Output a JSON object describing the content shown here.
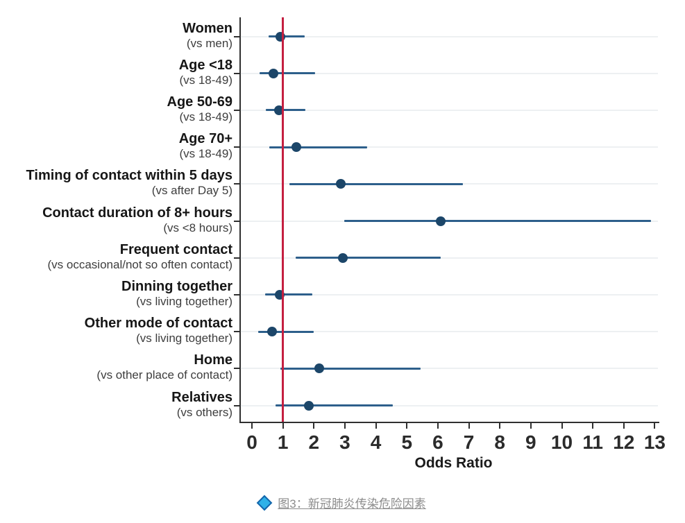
{
  "chart_data": {
    "type": "scatter",
    "subtype": "forest-plot",
    "title": "",
    "xlabel": "Odds Ratio",
    "ylabel": "",
    "xlim": [
      0,
      13.2
    ],
    "x_ticks": [
      0,
      1,
      2,
      3,
      4,
      5,
      6,
      7,
      8,
      9,
      10,
      11,
      12,
      13
    ],
    "refline_x": 1,
    "grid": "horizontal-light",
    "legend": "none",
    "rows": [
      {
        "label": "Women",
        "sublabel": "(vs men)",
        "or": 0.92,
        "ci_low": 0.53,
        "ci_high": 1.7
      },
      {
        "label": "Age <18",
        "sublabel": "(vs 18-49)",
        "or": 0.69,
        "ci_low": 0.24,
        "ci_high": 2.03
      },
      {
        "label": "Age 50-69",
        "sublabel": "(vs 18-49)",
        "or": 0.87,
        "ci_low": 0.44,
        "ci_high": 1.72
      },
      {
        "label": "Age 70+",
        "sublabel": "(vs 18-49)",
        "or": 1.43,
        "ci_low": 0.57,
        "ci_high": 3.72
      },
      {
        "label": "Timing of contact within 5 days",
        "sublabel": "(vs after Day 5)",
        "or": 2.87,
        "ci_low": 1.2,
        "ci_high": 6.8
      },
      {
        "label": "Contact duration of 8+ hours",
        "sublabel": "(vs <8 hours)",
        "or": 6.1,
        "ci_low": 2.97,
        "ci_high": 12.88
      },
      {
        "label": "Frequent contact",
        "sublabel": "(vs occasional/not so often contact)",
        "or": 2.94,
        "ci_low": 1.42,
        "ci_high": 6.1
      },
      {
        "label": "Dinning together",
        "sublabel": "(vs living together)",
        "or": 0.89,
        "ci_low": 0.42,
        "ci_high": 1.95
      },
      {
        "label": "Other mode of contact",
        "sublabel": "(vs living together)",
        "or": 0.65,
        "ci_low": 0.2,
        "ci_high": 1.99
      },
      {
        "label": "Home",
        "sublabel": "(vs other place of contact)",
        "or": 2.18,
        "ci_low": 0.91,
        "ci_high": 5.44
      },
      {
        "label": "Relatives",
        "sublabel": "(vs others)",
        "or": 1.84,
        "ci_low": 0.76,
        "ci_high": 4.54
      }
    ],
    "colors": {
      "marker": "#1c4669",
      "ci_line": "#2d5f8b",
      "refline": "#c41f40",
      "axis": "#2f2f2f",
      "grid": "#edf0f2",
      "tick_label": "#2b2b2b"
    }
  },
  "caption": {
    "text": "图3：新冠肺炎传染危险因素",
    "icon": "diamond-icon",
    "icon_color": "#2fb1e8",
    "icon_border": "#1465ab",
    "text_color": "#8c8c8c"
  }
}
